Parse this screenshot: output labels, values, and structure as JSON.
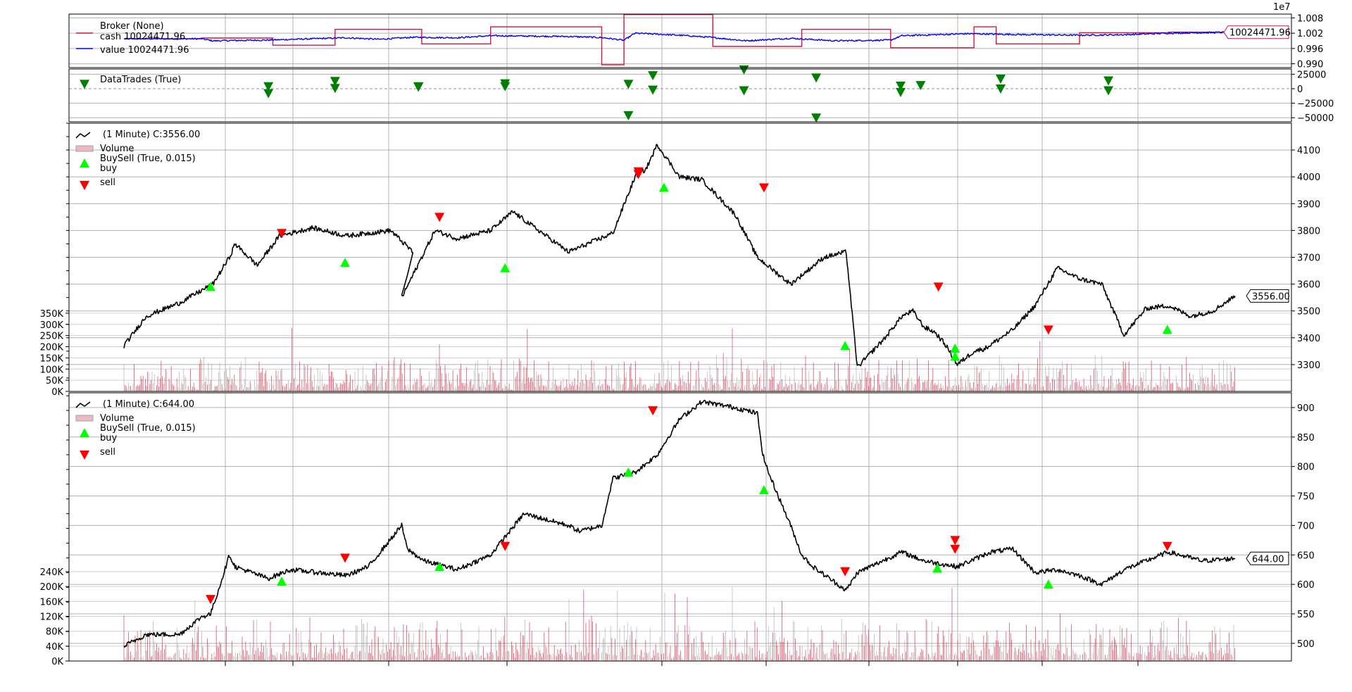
{
  "chart_data": [
    {
      "type": "line",
      "panel": "broker",
      "exponent_label": "1e7",
      "legend": [
        {
          "label": "Broker (None)",
          "color": "#dc143c"
        },
        {
          "label": "cash 10024471.96",
          "color": "#dc143c"
        },
        {
          "label": "value 10024471.96",
          "color": "#0000ff"
        }
      ],
      "y_ticks": [
        "1.008",
        "1.002",
        "0.996",
        "0.990"
      ],
      "y_tick_values": [
        1.008,
        1.002,
        0.996,
        0.99
      ],
      "ylim": [
        0.9885,
        1.0095
      ],
      "last_value_label": "10024471.96",
      "series": [
        {
          "name": "cash",
          "color": "#dc143c",
          "x": [
            0,
            0.07,
            0.07,
            0.134,
            0.134,
            0.19,
            0.19,
            0.268,
            0.268,
            0.33,
            0.33,
            0.43,
            0.43,
            0.45,
            0.45,
            0.53,
            0.53,
            0.61,
            0.61,
            0.69,
            0.69,
            0.765,
            0.765,
            0.785,
            0.785,
            0.86,
            0.86,
            0.94,
            0.94,
            1
          ],
          "y": [
            0.9998,
            0.9998,
            1.0001,
            1.0001,
            0.9973,
            0.9973,
            1.0035,
            1.0035,
            0.9978,
            0.9978,
            1.0045,
            1.0045,
            0.9896,
            0.9896,
            1.0093,
            1.0093,
            0.9968,
            0.9968,
            1.0035,
            1.0035,
            0.9963,
            0.9963,
            1.0045,
            1.0045,
            0.9978,
            0.9978,
            1.0022,
            1.0022,
            1.0024,
            1.0024
          ]
        }
      ]
    },
    {
      "type": "scatter",
      "panel": "datatrades",
      "legend": [
        {
          "label": "DataTrades (True)"
        }
      ],
      "y_ticks": [
        "25000",
        "0",
        "−25000",
        "−50000"
      ],
      "y_tick_values": [
        25000,
        0,
        -25000,
        -50000
      ],
      "ylim": [
        -57000,
        34000
      ],
      "markers": [
        {
          "x": 0.0,
          "y": 8000
        },
        {
          "x": 0.13,
          "y": 4000
        },
        {
          "x": 0.13,
          "y": -8000
        },
        {
          "x": 0.19,
          "y": 13000
        },
        {
          "x": 0.19,
          "y": 1000
        },
        {
          "x": 0.265,
          "y": 4000
        },
        {
          "x": 0.265,
          "y": 3000
        },
        {
          "x": 0.343,
          "y": 9000
        },
        {
          "x": 0.343,
          "y": 4000
        },
        {
          "x": 0.454,
          "y": 8000
        },
        {
          "x": 0.454,
          "y": -46000
        },
        {
          "x": 0.476,
          "y": 23000
        },
        {
          "x": 0.476,
          "y": -2000
        },
        {
          "x": 0.558,
          "y": 33000
        },
        {
          "x": 0.558,
          "y": -3000
        },
        {
          "x": 0.623,
          "y": 19000
        },
        {
          "x": 0.623,
          "y": -50000
        },
        {
          "x": 0.699,
          "y": 5000
        },
        {
          "x": 0.699,
          "y": -6000
        },
        {
          "x": 0.717,
          "y": 6000
        },
        {
          "x": 0.789,
          "y": 17000
        },
        {
          "x": 0.789,
          "y": 0
        },
        {
          "x": 0.886,
          "y": 14000
        },
        {
          "x": 0.886,
          "y": -3000
        }
      ]
    },
    {
      "type": "line",
      "panel": "data0",
      "legend": [
        {
          "label": "(1 Minute) C:3556.00",
          "symbol": "line"
        },
        {
          "label": "Volume",
          "symbol": "bar"
        },
        {
          "label": "BuySell (True, 0.015)",
          "symbol": "buy"
        },
        {
          "label": "buy",
          "symbol": "none"
        },
        {
          "label": "sell",
          "symbol": "sell"
        }
      ],
      "y_ticks": [
        "4100",
        "4000",
        "3900",
        "3800",
        "3700",
        "3600",
        "3500",
        "3400",
        "3300"
      ],
      "y_tick_values": [
        4100,
        4000,
        3900,
        3800,
        3700,
        3600,
        3500,
        3400,
        3300
      ],
      "ylim": [
        3200,
        4200
      ],
      "volume_ticks": [
        "350K",
        "300K",
        "250K",
        "200K",
        "150K",
        "100K",
        "50K",
        "0K"
      ],
      "volume_tick_values": [
        350000,
        300000,
        250000,
        200000,
        150000,
        100000,
        50000,
        0
      ],
      "volume_ylim": [
        0,
        1200000
      ],
      "volume_max": 300000,
      "last_value_label": "3556.00",
      "series": [
        {
          "name": "close",
          "color": "#000000",
          "x": [
            0,
            0.02,
            0.05,
            0.08,
            0.095,
            0.1,
            0.12,
            0.14,
            0.17,
            0.2,
            0.24,
            0.26,
            0.25,
            0.28,
            0.3,
            0.33,
            0.35,
            0.4,
            0.44,
            0.46,
            0.47,
            0.48,
            0.5,
            0.52,
            0.55,
            0.57,
            0.6,
            0.63,
            0.65,
            0.66,
            0.685,
            0.7,
            0.71,
            0.72,
            0.73,
            0.74,
            0.75,
            0.765,
            0.775,
            0.8,
            0.82,
            0.84,
            0.86,
            0.88,
            0.9,
            0.92,
            0.94,
            0.96,
            0.98,
            1
          ],
          "y": [
            3370,
            3480,
            3530,
            3600,
            3700,
            3750,
            3670,
            3780,
            3810,
            3780,
            3800,
            3720,
            3550,
            3800,
            3770,
            3800,
            3870,
            3720,
            3790,
            4000,
            4030,
            4120,
            4000,
            3990,
            3860,
            3700,
            3600,
            3700,
            3720,
            3290,
            3400,
            3480,
            3500,
            3440,
            3420,
            3370,
            3300,
            3350,
            3360,
            3430,
            3520,
            3660,
            3620,
            3600,
            3410,
            3510,
            3520,
            3480,
            3500,
            3556
          ]
        }
      ],
      "buy_markers": [
        {
          "x": 0.078,
          "y": 3590
        },
        {
          "x": 0.199,
          "y": 3680
        },
        {
          "x": 0.343,
          "y": 3660
        },
        {
          "x": 0.486,
          "y": 3960
        },
        {
          "x": 0.649,
          "y": 3370
        },
        {
          "x": 0.748,
          "y": 3360
        },
        {
          "x": 0.748,
          "y": 3330
        },
        {
          "x": 0.939,
          "y": 3430
        }
      ],
      "sell_markers": [
        {
          "x": 0.142,
          "y": 3790
        },
        {
          "x": 0.284,
          "y": 3850
        },
        {
          "x": 0.463,
          "y": 4020
        },
        {
          "x": 0.463,
          "y": 4010
        },
        {
          "x": 0.576,
          "y": 3960
        },
        {
          "x": 0.733,
          "y": 3590
        },
        {
          "x": 0.832,
          "y": 3430
        }
      ]
    },
    {
      "type": "line",
      "panel": "data1",
      "legend": [
        {
          "label": "(1 Minute) C:644.00",
          "symbol": "line"
        },
        {
          "label": "Volume",
          "symbol": "bar"
        },
        {
          "label": "BuySell (True, 0.015)",
          "symbol": "buy"
        },
        {
          "label": "buy",
          "symbol": "none"
        },
        {
          "label": "sell",
          "symbol": "sell"
        }
      ],
      "y_ticks": [
        "900",
        "850",
        "800",
        "750",
        "700",
        "650",
        "600",
        "550",
        "500"
      ],
      "y_tick_values": [
        900,
        850,
        800,
        750,
        700,
        650,
        600,
        550,
        500
      ],
      "ylim": [
        470,
        925
      ],
      "volume_ticks": [
        "240K",
        "200K",
        "160K",
        "120K",
        "80K",
        "40K",
        "0K"
      ],
      "volume_tick_values": [
        240000,
        200000,
        160000,
        120000,
        80000,
        40000,
        0
      ],
      "volume_ylim": [
        0,
        720000
      ],
      "volume_max": 210000,
      "last_value_label": "644.00",
      "series": [
        {
          "name": "close",
          "color": "#000000",
          "x": [
            0,
            0.02,
            0.05,
            0.07,
            0.078,
            0.085,
            0.095,
            0.1,
            0.13,
            0.15,
            0.2,
            0.22,
            0.25,
            0.255,
            0.27,
            0.3,
            0.33,
            0.36,
            0.4,
            0.41,
            0.43,
            0.44,
            0.46,
            0.48,
            0.5,
            0.52,
            0.55,
            0.57,
            0.575,
            0.58,
            0.6,
            0.61,
            0.62,
            0.65,
            0.66,
            0.7,
            0.72,
            0.75,
            0.78,
            0.8,
            0.82,
            0.84,
            0.86,
            0.88,
            0.9,
            0.92,
            0.94,
            0.97,
            1
          ],
          "y": [
            495,
            515,
            515,
            545,
            550,
            590,
            650,
            630,
            610,
            625,
            615,
            630,
            700,
            660,
            640,
            625,
            650,
            720,
            700,
            690,
            700,
            780,
            790,
            820,
            880,
            910,
            900,
            890,
            820,
            790,
            700,
            650,
            630,
            590,
            620,
            655,
            640,
            630,
            655,
            660,
            620,
            625,
            615,
            600,
            625,
            640,
            655,
            640,
            644
          ]
        }
      ],
      "buy_markers": [
        {
          "x": 0.142,
          "y": 605
        },
        {
          "x": 0.284,
          "y": 630
        },
        {
          "x": 0.454,
          "y": 790
        },
        {
          "x": 0.576,
          "y": 760
        },
        {
          "x": 0.732,
          "y": 627
        },
        {
          "x": 0.832,
          "y": 600
        }
      ],
      "sell_markers": [
        {
          "x": 0.078,
          "y": 575
        },
        {
          "x": 0.199,
          "y": 645
        },
        {
          "x": 0.343,
          "y": 665
        },
        {
          "x": 0.476,
          "y": 895
        },
        {
          "x": 0.649,
          "y": 622
        },
        {
          "x": 0.748,
          "y": 660
        },
        {
          "x": 0.748,
          "y": 675
        },
        {
          "x": 0.939,
          "y": 665
        }
      ]
    }
  ]
}
